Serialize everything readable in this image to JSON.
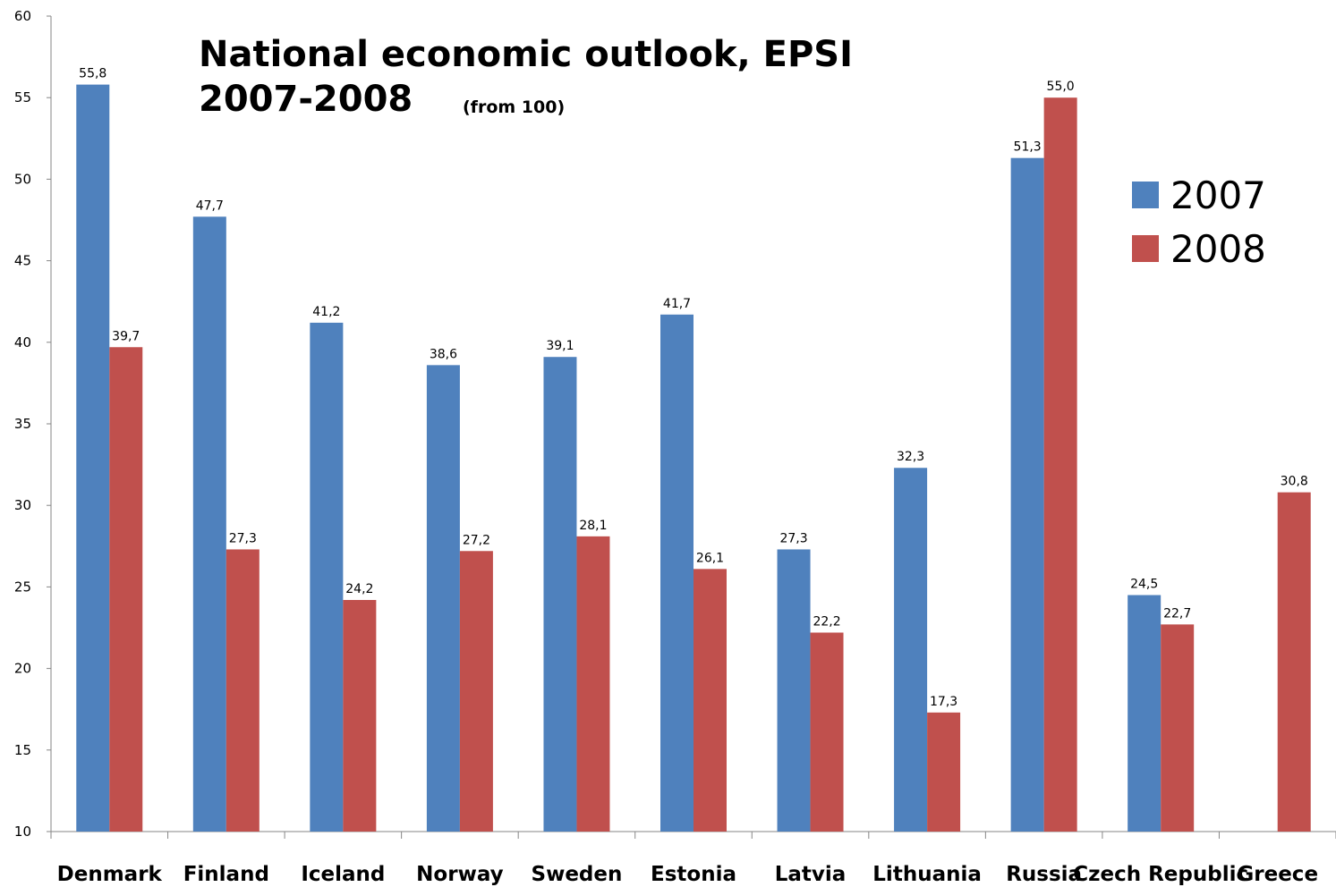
{
  "chart_data": {
    "type": "bar",
    "title_line1": "National economic outlook, EPSI",
    "title_line2": "2007-2008",
    "title_note": "(from 100)",
    "categories": [
      "Denmark",
      "Finland",
      "Iceland",
      "Norway",
      "Sweden",
      "Estonia",
      "Latvia",
      "Lithuania",
      "Russia",
      "Czech Republic",
      "Greece"
    ],
    "series": [
      {
        "name": "2007",
        "color": "#4f81bd",
        "values": [
          55.8,
          47.7,
          41.2,
          38.6,
          39.1,
          41.7,
          27.3,
          32.3,
          51.3,
          24.5,
          null
        ],
        "labels": [
          "55,8",
          "47,7",
          "41,2",
          "38,6",
          "39,1",
          "41,7",
          "27,3",
          "32,3",
          "51,3",
          "24,5",
          ""
        ]
      },
      {
        "name": "2008",
        "color": "#c0504d",
        "values": [
          39.7,
          27.3,
          24.2,
          27.2,
          28.1,
          26.1,
          22.2,
          17.3,
          55.0,
          22.7,
          30.8
        ],
        "labels": [
          "39,7",
          "27,3",
          "24,2",
          "27,2",
          "28,1",
          "26,1",
          "22,2",
          "17,3",
          "55,0",
          "22,7",
          "30,8"
        ]
      }
    ],
    "ylim": [
      10,
      60
    ],
    "yticks": [
      "10",
      "15",
      "20",
      "25",
      "30",
      "35",
      "40",
      "45",
      "50",
      "55",
      "60"
    ],
    "grid": false,
    "legend_position": "right"
  }
}
